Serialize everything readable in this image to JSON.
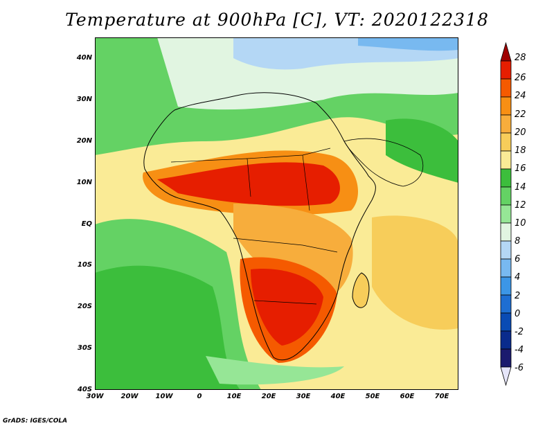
{
  "title": "Temperature at 900hPa [C], VT: 2020122318",
  "credit": "GrADS: IGES/COLA",
  "lat_labels": [
    "40N",
    "30N",
    "20N",
    "10N",
    "EQ",
    "10S",
    "20S",
    "30S",
    "40S"
  ],
  "lon_labels": [
    "30W",
    "20W",
    "10W",
    "0",
    "10E",
    "20E",
    "30E",
    "40E",
    "50E",
    "60E",
    "70E"
  ],
  "colorbar": {
    "labels": [
      "28",
      "26",
      "24",
      "22",
      "20",
      "18",
      "16",
      "14",
      "12",
      "10",
      "8",
      "6",
      "4",
      "2",
      "0",
      "-2",
      "-4",
      "-6"
    ],
    "colors": [
      "#a00000",
      "#e61e00",
      "#f55a00",
      "#f78f14",
      "#f7ad3c",
      "#f7cd5a",
      "#faeb96",
      "#3cbe3c",
      "#64d264",
      "#96e696",
      "#e1f5e1",
      "#b4d7f5",
      "#78b9f0",
      "#3c96e6",
      "#1e6ed2",
      "#0a4bb4",
      "#0a2b8c",
      "#1b1b6e",
      "#e6e6fa"
    ]
  }
}
